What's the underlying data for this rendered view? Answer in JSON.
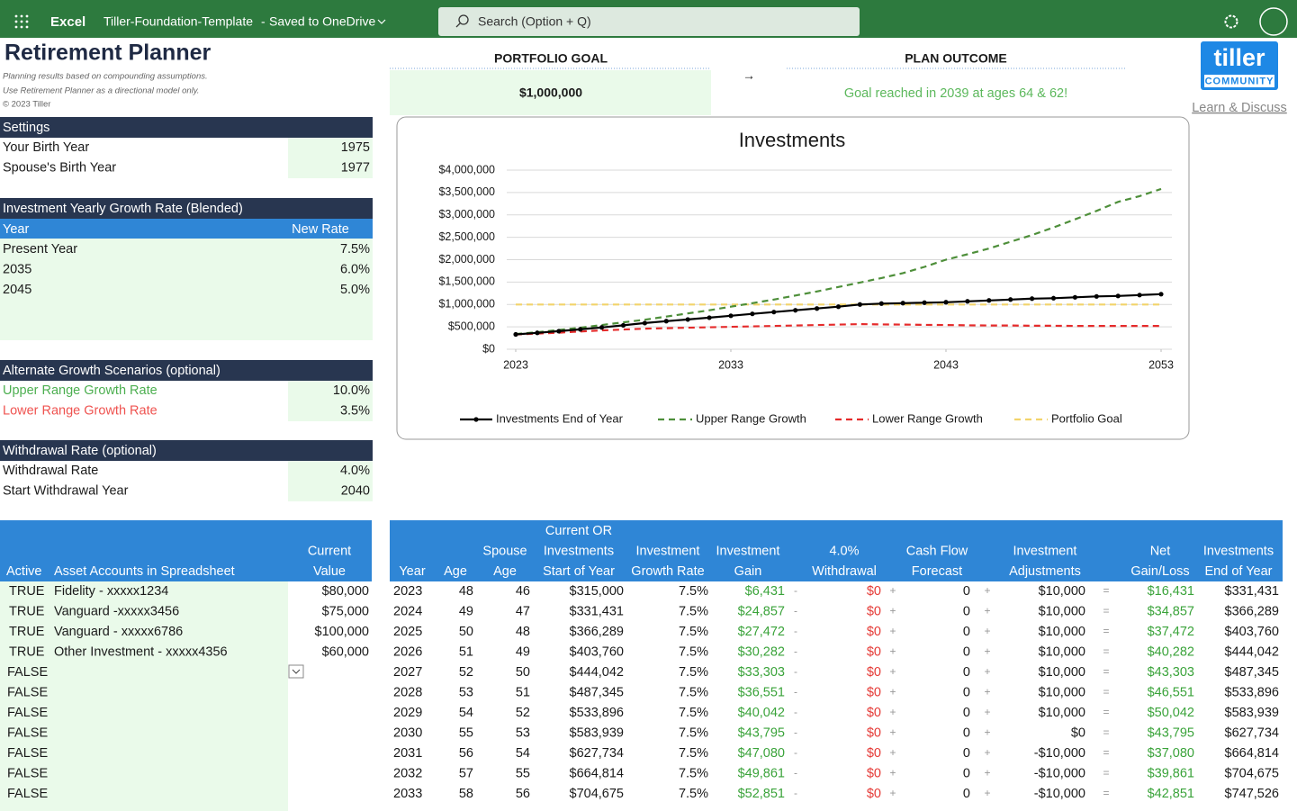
{
  "app": {
    "name": "Excel",
    "file": "Tiller-Foundation-Template",
    "separator": "-",
    "status": "Saved to OneDrive",
    "search": "Search (Option + Q)"
  },
  "header": {
    "title": "Retirement Planner",
    "notes": [
      "Planning results based on compounding assumptions.",
      "Use Retirement Planner as a directional model only.",
      "© 2023 Tiller"
    ],
    "goal_label": "PORTFOLIO GOAL",
    "goal_value": "$1,000,000",
    "arrow": "→",
    "outcome_label": "PLAN OUTCOME",
    "outcome_value": "Goal reached in 2039 at ages 64 & 62!",
    "logo": "tiller",
    "logo_sub": "COMMUNITY",
    "link": "Learn & Discuss"
  },
  "settings": {
    "title": "Settings",
    "rows": [
      [
        "Your Birth Year",
        "1975"
      ],
      [
        "Spouse's Birth Year",
        "1977"
      ]
    ]
  },
  "growth": {
    "title": "Investment Yearly Growth Rate (Blended)",
    "columns": [
      "Year",
      "New Rate"
    ],
    "rows": [
      [
        "Present Year",
        "7.5%"
      ],
      [
        "2035",
        "6.0%"
      ],
      [
        "2045",
        "5.0%"
      ]
    ]
  },
  "scenarios": {
    "title": "Alternate Growth Scenarios (optional)",
    "rows": [
      [
        "Upper Range Growth Rate",
        "10.0%"
      ],
      [
        "Lower Range Growth Rate",
        "3.5%"
      ]
    ]
  },
  "withdrawal": {
    "title": "Withdrawal Rate (optional)",
    "rows": [
      [
        "Withdrawal Rate",
        "4.0%"
      ],
      [
        "Start Withdrawal Year",
        "2040"
      ]
    ]
  },
  "assets": {
    "columns": [
      [
        "Active"
      ],
      [
        "Asset Accounts in Spreadsheet"
      ],
      [
        "Current",
        "Value"
      ]
    ],
    "rows": [
      [
        "TRUE",
        "Fidelity - xxxxx1234",
        "$80,000"
      ],
      [
        "TRUE",
        "Vanguard -xxxxx3456",
        "$75,000"
      ],
      [
        "TRUE",
        "Vanguard - xxxxx6786",
        "$100,000"
      ],
      [
        "TRUE",
        "Other Investment - xxxxx4356",
        "$60,000"
      ],
      [
        "FALSE"
      ],
      [
        "FALSE"
      ],
      [
        "FALSE"
      ],
      [
        "FALSE"
      ],
      [
        "FALSE"
      ],
      [
        "FALSE"
      ],
      [
        "FALSE"
      ]
    ]
  },
  "projection": {
    "columns": [
      [
        "Year"
      ],
      [
        "Age"
      ],
      [
        "Spouse",
        "Age"
      ],
      [
        "Current OR",
        "Investments",
        "Start of Year"
      ],
      [
        "Investment",
        "Growth Rate"
      ],
      [
        "Investment",
        "Gain"
      ],
      [
        "4.0%",
        "Withdrawal"
      ],
      [
        "Cash Flow",
        "Forecast"
      ],
      [
        "Investment",
        "Adjustments"
      ],
      [
        "Net",
        "Gain/Loss"
      ],
      [
        "Investments",
        "End of Year"
      ]
    ],
    "operators": [
      "-",
      "+",
      "+",
      "="
    ],
    "rows": [
      [
        "2023",
        "48",
        "46",
        "$315,000",
        "7.5%",
        "$6,431",
        "$0",
        "0",
        "$10,000",
        "$16,431",
        "$331,431"
      ],
      [
        "2024",
        "49",
        "47",
        "$331,431",
        "7.5%",
        "$24,857",
        "$0",
        "0",
        "$10,000",
        "$34,857",
        "$366,289"
      ],
      [
        "2025",
        "50",
        "48",
        "$366,289",
        "7.5%",
        "$27,472",
        "$0",
        "0",
        "$10,000",
        "$37,472",
        "$403,760"
      ],
      [
        "2026",
        "51",
        "49",
        "$403,760",
        "7.5%",
        "$30,282",
        "$0",
        "0",
        "$10,000",
        "$40,282",
        "$444,042"
      ],
      [
        "2027",
        "52",
        "50",
        "$444,042",
        "7.5%",
        "$33,303",
        "$0",
        "0",
        "$10,000",
        "$43,303",
        "$487,345"
      ],
      [
        "2028",
        "53",
        "51",
        "$487,345",
        "7.5%",
        "$36,551",
        "$0",
        "0",
        "$10,000",
        "$46,551",
        "$533,896"
      ],
      [
        "2029",
        "54",
        "52",
        "$533,896",
        "7.5%",
        "$40,042",
        "$0",
        "0",
        "$10,000",
        "$50,042",
        "$583,939"
      ],
      [
        "2030",
        "55",
        "53",
        "$583,939",
        "7.5%",
        "$43,795",
        "$0",
        "0",
        "$0",
        "$43,795",
        "$627,734"
      ],
      [
        "2031",
        "56",
        "54",
        "$627,734",
        "7.5%",
        "$47,080",
        "$0",
        "0",
        "-$10,000",
        "$37,080",
        "$664,814"
      ],
      [
        "2032",
        "57",
        "55",
        "$664,814",
        "7.5%",
        "$49,861",
        "$0",
        "0",
        "-$10,000",
        "$39,861",
        "$704,675"
      ],
      [
        "2033",
        "58",
        "56",
        "$704,675",
        "7.5%",
        "$52,851",
        "$0",
        "0",
        "-$10,000",
        "$42,851",
        "$747,526"
      ]
    ]
  },
  "chart": {
    "type": "line",
    "title": "Investments",
    "x": [
      2023,
      2024,
      2025,
      2026,
      2027,
      2028,
      2029,
      2030,
      2031,
      2032,
      2033,
      2034,
      2035,
      2036,
      2037,
      2038,
      2039,
      2040,
      2041,
      2042,
      2043,
      2044,
      2045,
      2046,
      2047,
      2048,
      2049,
      2050,
      2051,
      2052,
      2053
    ],
    "xlim": [
      2023,
      2053
    ],
    "xticks": [
      2023,
      2033,
      2043,
      2053
    ],
    "ylim": [
      0,
      4000000
    ],
    "yticks": [
      {
        "value": 0,
        "label": "$0"
      },
      {
        "value": 500000,
        "label": "$500,000"
      },
      {
        "value": 1000000,
        "label": "$1,000,000"
      },
      {
        "value": 1500000,
        "label": "$1,500,000"
      },
      {
        "value": 2000000,
        "label": "$2,000,000"
      },
      {
        "value": 2500000,
        "label": "$2,500,000"
      },
      {
        "value": 3000000,
        "label": "$3,000,000"
      },
      {
        "value": 3500000,
        "label": "$3,500,000"
      },
      {
        "value": 4000000,
        "label": "$4,000,000"
      }
    ],
    "grid": true,
    "legend": "bottom",
    "series": [
      {
        "name": "Investments End of Year",
        "color": "#000000",
        "dash": false,
        "marker": true,
        "values": [
          331431,
          366289,
          403760,
          444042,
          487345,
          533896,
          583939,
          627734,
          664814,
          704675,
          747526,
          790000,
          830000,
          870000,
          910000,
          950000,
          1000000,
          1020000,
          1030000,
          1040000,
          1050000,
          1070000,
          1090000,
          1110000,
          1130000,
          1140000,
          1160000,
          1180000,
          1190000,
          1210000,
          1230000
        ]
      },
      {
        "name": "Upper Range Growth",
        "color": "#4e8f3a",
        "dash": true,
        "marker": false,
        "values": [
          340000,
          380000,
          430000,
          480000,
          540000,
          600000,
          660000,
          730000,
          800000,
          870000,
          950000,
          1030000,
          1110000,
          1200000,
          1290000,
          1390000,
          1490000,
          1590000,
          1700000,
          1840000,
          2000000,
          2120000,
          2250000,
          2400000,
          2550000,
          2720000,
          2900000,
          3090000,
          3290000,
          3420000,
          3580000
        ]
      },
      {
        "name": "Lower Range Growth",
        "color": "#e52b2b",
        "dash": true,
        "marker": false,
        "values": [
          330000,
          350000,
          370000,
          395000,
          420000,
          440000,
          460000,
          470000,
          480000,
          490000,
          500000,
          510000,
          520000,
          530000,
          540000,
          550000,
          560000,
          555000,
          550000,
          545000,
          540000,
          535000,
          530000,
          530000,
          525000,
          525000,
          520000,
          520000,
          520000,
          520000,
          520000
        ]
      },
      {
        "name": "Portfolio Goal",
        "color": "#f2d46b",
        "dash": true,
        "marker": false,
        "values": [
          1000000,
          1000000,
          1000000,
          1000000,
          1000000,
          1000000,
          1000000,
          1000000,
          1000000,
          1000000,
          1000000,
          1000000,
          1000000,
          1000000,
          1000000,
          1000000,
          1000000,
          1000000,
          1000000,
          1000000,
          1000000,
          1000000,
          1000000,
          1000000,
          1000000,
          1000000,
          1000000,
          1000000,
          1000000,
          1000000,
          1000000
        ]
      }
    ]
  }
}
